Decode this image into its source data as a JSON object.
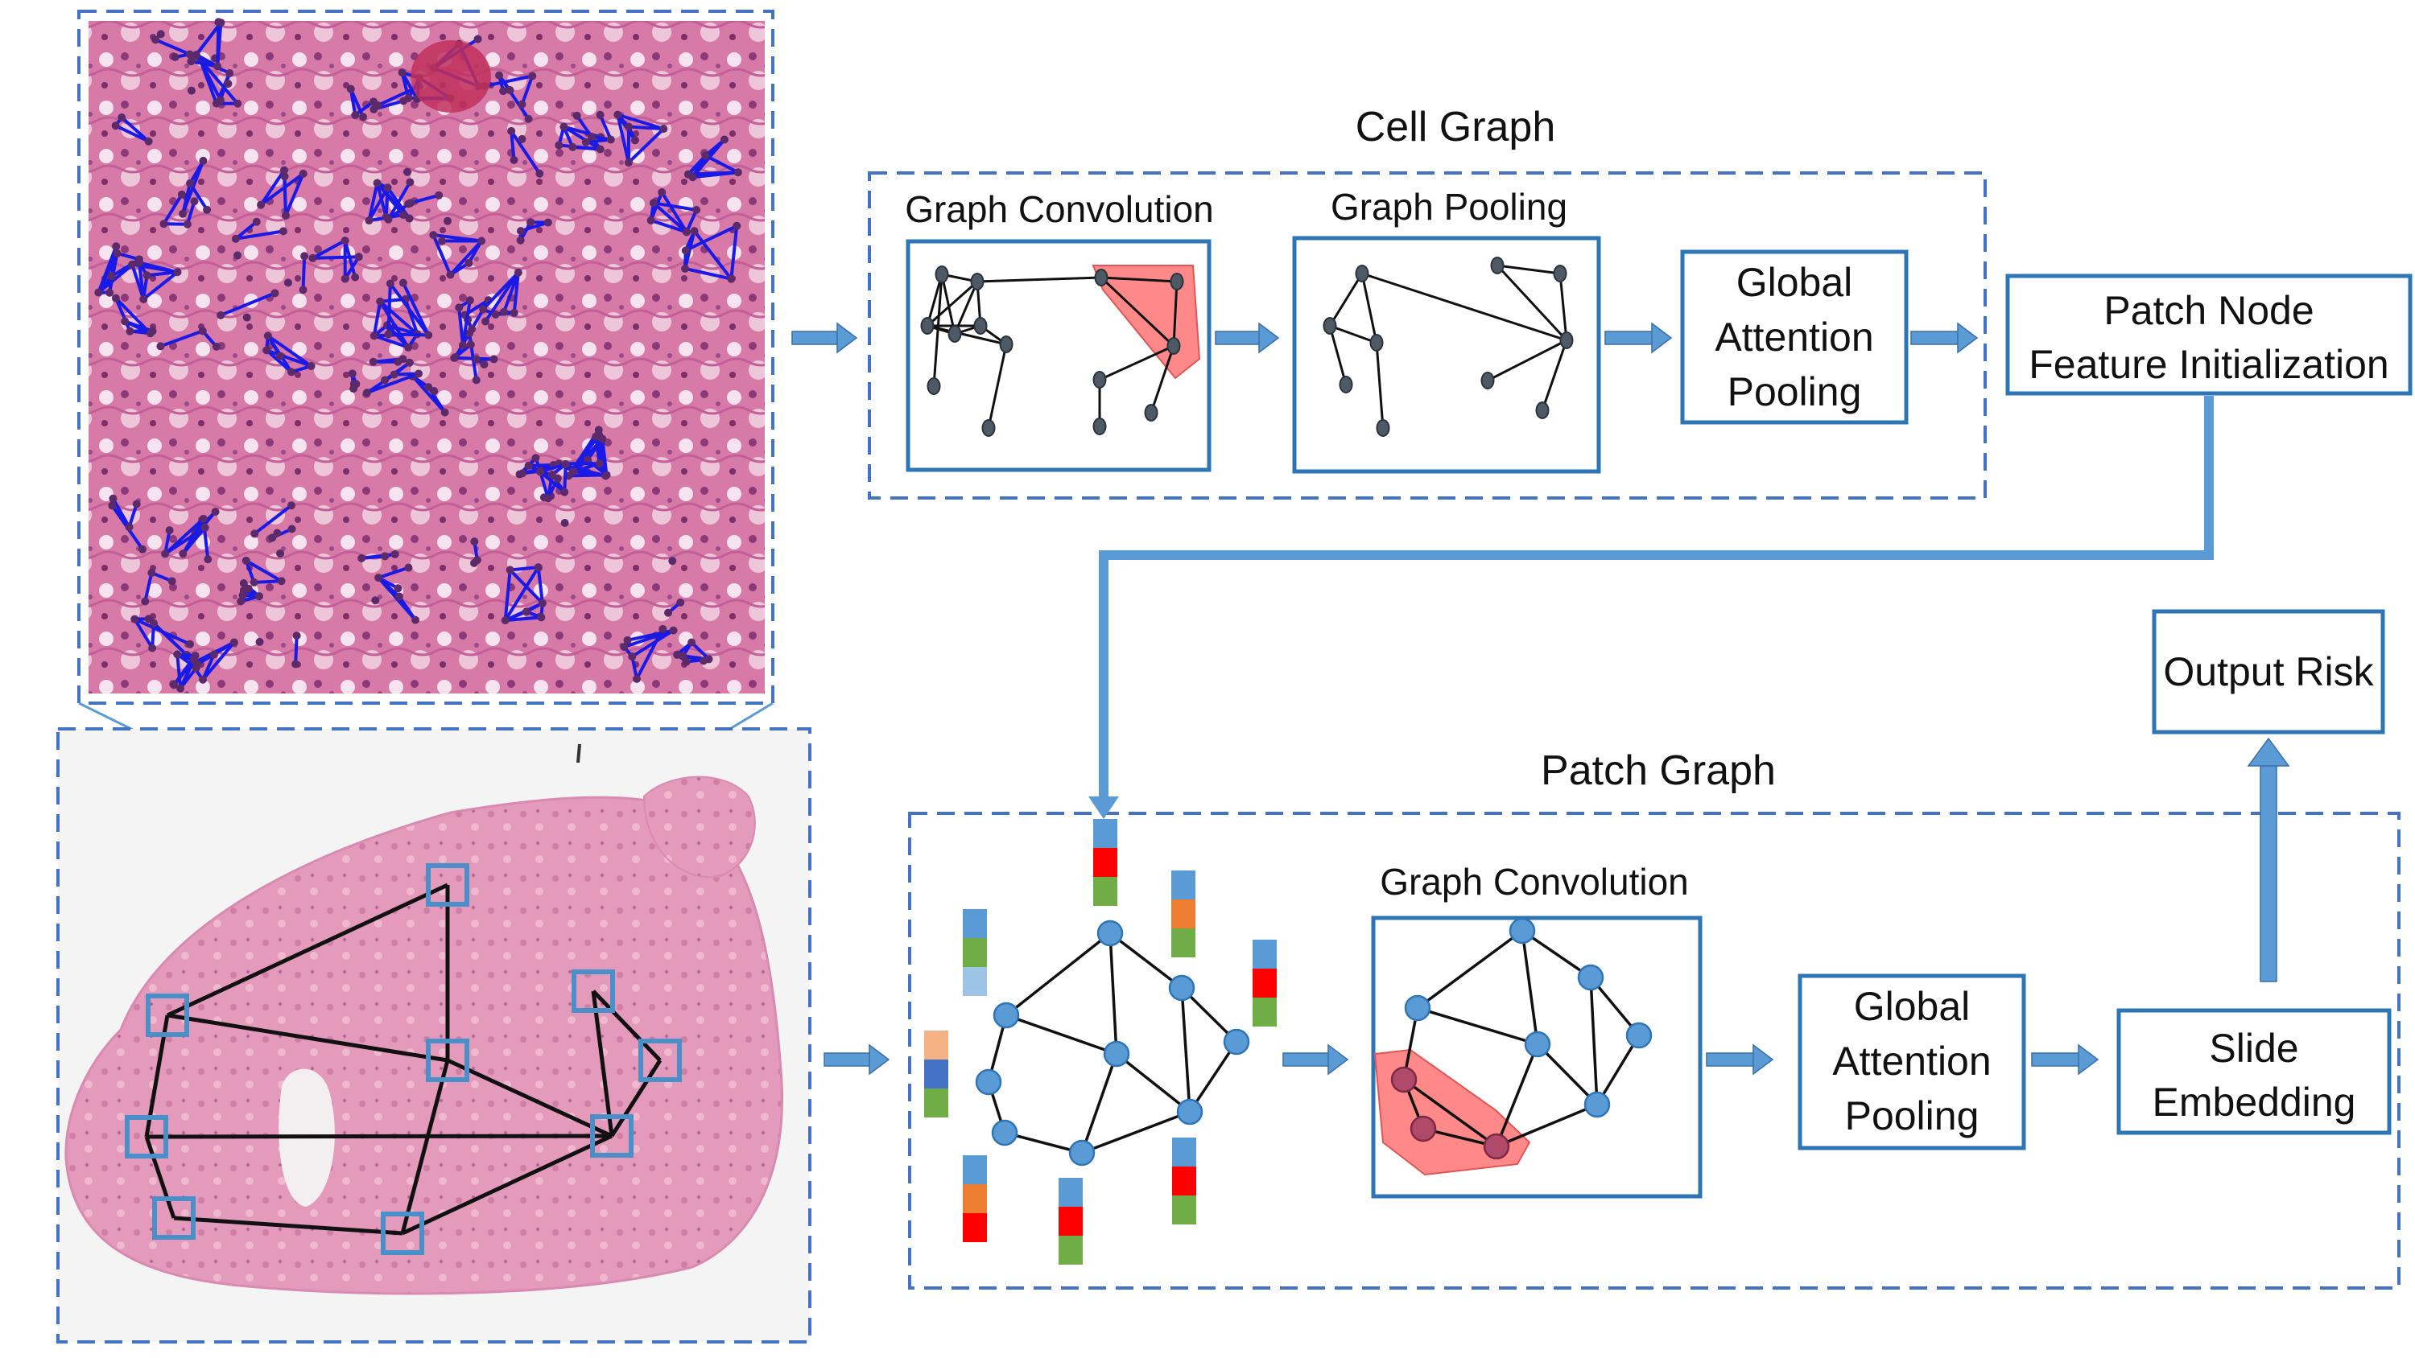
{
  "cell_graph": {
    "title": "Cell Graph",
    "graph_convolution_label": "Graph Convolution",
    "graph_pooling_label": "Graph Pooling",
    "global_attention_pooling": [
      "Global",
      "Attention",
      "Pooling"
    ]
  },
  "patch_node_init": [
    "Patch Node",
    "Feature Initialization"
  ],
  "patch_graph": {
    "title": "Patch Graph",
    "graph_convolution_label": "Graph Convolution",
    "global_attention_pooling": [
      "Global",
      "Attention",
      "Pooling"
    ],
    "slide_embedding": [
      "Slide",
      "Embedding"
    ]
  },
  "output_risk": "Output Risk",
  "colors": {
    "dashed_border": "#4472c4",
    "box_border": "#2e75b6",
    "arrow": "#5b9bd5",
    "node_blue": "#5b9bd5",
    "highlight_red": "#ff6b6b",
    "tissue_pink": "#e8a0b8",
    "feature_colors": [
      "#5b9bd5",
      "#ff0000",
      "#70ad47",
      "#ed7d31",
      "#4472c4",
      "#f4b183",
      "#9dc3e6"
    ]
  }
}
